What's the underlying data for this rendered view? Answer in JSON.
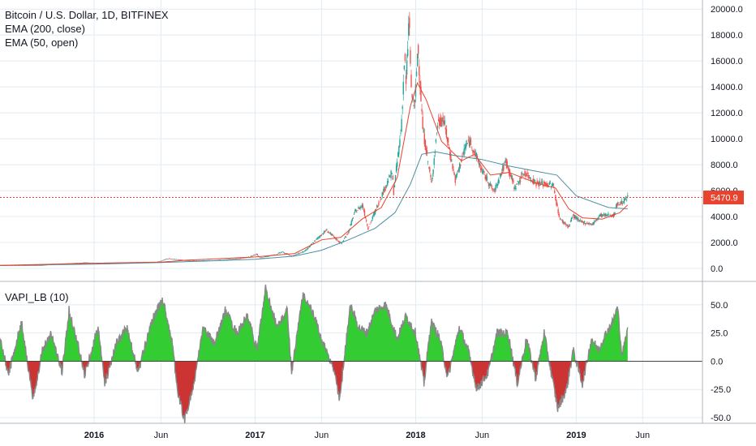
{
  "legend": {
    "symbol_line": "Bitcoin / U.S. Dollar, 1D, BITFINEX",
    "ema_long": "EMA (200, close)",
    "ema_short": "EMA (50, open)",
    "indicator": "VAPI_LB (10)"
  },
  "price_tag": "5470.9",
  "colors": {
    "up": "#26a69a",
    "down": "#ef5350",
    "ema200": "#4a8fa0",
    "ema50": "#e8432e",
    "osc_pos": "#33cc33",
    "osc_neg": "#cc3333",
    "osc_line": "#888888",
    "price_line": "#e8432e",
    "grid": "#e1ecf2"
  },
  "chart_data": [
    {
      "type": "candlestick",
      "title": "Bitcoin / U.S. Dollar, 1D, BITFINEX",
      "x_range": [
        "2015-06-01",
        "2019-10-15"
      ],
      "y_range": [
        -1000,
        20700
      ],
      "y_ticks": [
        "0.0",
        "2000.0",
        "4000.0",
        "6000.0",
        "8000.0",
        "10000.0",
        "12000.0",
        "14000.0",
        "16000.0",
        "18000.0",
        "20000.0"
      ],
      "x_ticks": [
        {
          "date": "2016-01-01",
          "label": "2016"
        },
        {
          "date": "2016-06-01",
          "label": "Jun"
        },
        {
          "date": "2017-01-01",
          "label": "2017"
        },
        {
          "date": "2017-06-01",
          "label": "Jun"
        },
        {
          "date": "2018-01-01",
          "label": "2018"
        },
        {
          "date": "2018-06-01",
          "label": "Jun"
        },
        {
          "date": "2019-01-01",
          "label": "2019"
        },
        {
          "date": "2019-06-01",
          "label": "Jun"
        }
      ],
      "last_price": 5470.9,
      "price_series": [
        [
          "2015-06-01",
          230
        ],
        [
          "2015-09-01",
          240
        ],
        [
          "2015-11-05",
          390
        ],
        [
          "2015-12-15",
          450
        ],
        [
          "2016-01-15",
          380
        ],
        [
          "2016-03-01",
          420
        ],
        [
          "2016-05-20",
          460
        ],
        [
          "2016-06-17",
          760
        ],
        [
          "2016-07-15",
          660
        ],
        [
          "2016-08-05",
          580
        ],
        [
          "2016-10-01",
          615
        ],
        [
          "2016-11-15",
          720
        ],
        [
          "2016-12-20",
          880
        ],
        [
          "2017-01-04",
          1120
        ],
        [
          "2017-01-12",
          800
        ],
        [
          "2017-02-20",
          1100
        ],
        [
          "2017-03-03",
          1280
        ],
        [
          "2017-03-25",
          950
        ],
        [
          "2017-04-25",
          1350
        ],
        [
          "2017-05-25",
          2400
        ],
        [
          "2017-06-12",
          2950
        ],
        [
          "2017-07-16",
          1900
        ],
        [
          "2017-08-01",
          2800
        ],
        [
          "2017-08-15",
          4300
        ],
        [
          "2017-09-02",
          4900
        ],
        [
          "2017-09-15",
          3100
        ],
        [
          "2017-10-01",
          4400
        ],
        [
          "2017-10-20",
          6000
        ],
        [
          "2017-11-08",
          7400
        ],
        [
          "2017-11-12",
          5900
        ],
        [
          "2017-11-29",
          10800
        ],
        [
          "2017-12-07",
          16500
        ],
        [
          "2017-12-10",
          14000
        ],
        [
          "2017-12-17",
          19500
        ],
        [
          "2017-12-22",
          13500
        ],
        [
          "2017-12-30",
          12500
        ],
        [
          "2018-01-06",
          17200
        ],
        [
          "2018-01-17",
          10800
        ],
        [
          "2018-02-06",
          6500
        ],
        [
          "2018-02-20",
          11200
        ],
        [
          "2018-03-05",
          11500
        ],
        [
          "2018-04-01",
          6800
        ],
        [
          "2018-04-25",
          9500
        ],
        [
          "2018-05-05",
          9800
        ],
        [
          "2018-06-01",
          7500
        ],
        [
          "2018-06-28",
          5900
        ],
        [
          "2018-07-25",
          8300
        ],
        [
          "2018-08-14",
          6200
        ],
        [
          "2018-09-05",
          7400
        ],
        [
          "2018-10-01",
          6600
        ],
        [
          "2018-11-10",
          6400
        ],
        [
          "2018-11-20",
          4500
        ],
        [
          "2018-11-25",
          3800
        ],
        [
          "2018-12-15",
          3200
        ],
        [
          "2018-12-24",
          4100
        ],
        [
          "2019-01-10",
          3600
        ],
        [
          "2019-02-07",
          3400
        ],
        [
          "2019-02-24",
          4100
        ],
        [
          "2019-03-30",
          4100
        ],
        [
          "2019-04-02",
          4900
        ],
        [
          "2019-04-15",
          5100
        ],
        [
          "2019-04-28",
          5470.9
        ]
      ],
      "ema200_series": [
        [
          "2015-06-01",
          230
        ],
        [
          "2016-01-01",
          330
        ],
        [
          "2016-06-01",
          450
        ],
        [
          "2017-01-01",
          700
        ],
        [
          "2017-04-01",
          950
        ],
        [
          "2017-06-01",
          1400
        ],
        [
          "2017-08-01",
          2200
        ],
        [
          "2017-10-01",
          3100
        ],
        [
          "2017-11-15",
          4300
        ],
        [
          "2017-12-20",
          6500
        ],
        [
          "2018-01-15",
          8800
        ],
        [
          "2018-02-15",
          9000
        ],
        [
          "2018-04-01",
          8700
        ],
        [
          "2018-06-01",
          8400
        ],
        [
          "2018-08-01",
          7900
        ],
        [
          "2018-10-01",
          7500
        ],
        [
          "2018-11-18",
          7200
        ],
        [
          "2019-01-01",
          5600
        ],
        [
          "2019-03-15",
          4700
        ],
        [
          "2019-04-28",
          4600
        ]
      ],
      "ema50_series": [
        [
          "2015-06-01",
          230
        ],
        [
          "2016-01-01",
          400
        ],
        [
          "2016-06-01",
          480
        ],
        [
          "2016-08-01",
          640
        ],
        [
          "2017-01-01",
          880
        ],
        [
          "2017-04-01",
          1150
        ],
        [
          "2017-06-01",
          2200
        ],
        [
          "2017-07-15",
          2400
        ],
        [
          "2017-09-01",
          3800
        ],
        [
          "2017-10-15",
          4700
        ],
        [
          "2017-11-20",
          7000
        ],
        [
          "2017-12-20",
          12500
        ],
        [
          "2018-01-05",
          14300
        ],
        [
          "2018-01-25",
          13000
        ],
        [
          "2018-03-01",
          9800
        ],
        [
          "2018-04-15",
          8300
        ],
        [
          "2018-05-15",
          8800
        ],
        [
          "2018-06-20",
          7200
        ],
        [
          "2018-08-01",
          7400
        ],
        [
          "2018-10-01",
          6600
        ],
        [
          "2018-11-15",
          6200
        ],
        [
          "2018-12-15",
          4600
        ],
        [
          "2019-01-15",
          3900
        ],
        [
          "2019-03-01",
          3800
        ],
        [
          "2019-04-10",
          4300
        ],
        [
          "2019-04-28",
          4900
        ]
      ]
    },
    {
      "type": "area",
      "title": "VAPI_LB (10)",
      "y_range": [
        -55,
        70
      ],
      "y_ticks": [
        "-50.0",
        "-25.0",
        "0.0",
        "25.0",
        "50.0"
      ],
      "series": [
        [
          "2015-06-01",
          20
        ],
        [
          "2015-06-20",
          -12
        ],
        [
          "2015-07-20",
          35
        ],
        [
          "2015-08-15",
          -35
        ],
        [
          "2015-09-05",
          10
        ],
        [
          "2015-09-25",
          25
        ],
        [
          "2015-10-20",
          -10
        ],
        [
          "2015-11-05",
          45
        ],
        [
          "2015-11-25",
          15
        ],
        [
          "2015-12-10",
          -12
        ],
        [
          "2016-01-10",
          30
        ],
        [
          "2016-01-25",
          -20
        ],
        [
          "2016-02-20",
          15
        ],
        [
          "2016-03-15",
          30
        ],
        [
          "2016-04-10",
          -10
        ],
        [
          "2016-05-10",
          35
        ],
        [
          "2016-06-05",
          55
        ],
        [
          "2016-06-25",
          20
        ],
        [
          "2016-07-10",
          -30
        ],
        [
          "2016-07-25",
          -52
        ],
        [
          "2016-08-15",
          -20
        ],
        [
          "2016-09-05",
          30
        ],
        [
          "2016-10-01",
          15
        ],
        [
          "2016-10-25",
          45
        ],
        [
          "2016-11-20",
          25
        ],
        [
          "2016-12-15",
          40
        ],
        [
          "2017-01-05",
          10
        ],
        [
          "2017-01-25",
          65
        ],
        [
          "2017-02-20",
          30
        ],
        [
          "2017-03-15",
          45
        ],
        [
          "2017-03-25",
          -10
        ],
        [
          "2017-04-20",
          60
        ],
        [
          "2017-05-15",
          40
        ],
        [
          "2017-06-05",
          15
        ],
        [
          "2017-07-01",
          -10
        ],
        [
          "2017-07-12",
          -35
        ],
        [
          "2017-08-05",
          50
        ],
        [
          "2017-08-25",
          30
        ],
        [
          "2017-09-12",
          25
        ],
        [
          "2017-10-01",
          45
        ],
        [
          "2017-10-25",
          50
        ],
        [
          "2017-11-20",
          20
        ],
        [
          "2017-12-10",
          40
        ],
        [
          "2018-01-01",
          25
        ],
        [
          "2018-01-20",
          -20
        ],
        [
          "2018-02-05",
          35
        ],
        [
          "2018-02-25",
          20
        ],
        [
          "2018-03-15",
          -15
        ],
        [
          "2018-04-10",
          30
        ],
        [
          "2018-04-30",
          10
        ],
        [
          "2018-05-20",
          -25
        ],
        [
          "2018-06-15",
          -10
        ],
        [
          "2018-07-05",
          25
        ],
        [
          "2018-07-30",
          25
        ],
        [
          "2018-08-20",
          -20
        ],
        [
          "2018-09-10",
          20
        ],
        [
          "2018-10-01",
          -15
        ],
        [
          "2018-10-20",
          25
        ],
        [
          "2018-11-05",
          -10
        ],
        [
          "2018-11-20",
          -42
        ],
        [
          "2018-12-10",
          -25
        ],
        [
          "2018-12-25",
          10
        ],
        [
          "2019-01-15",
          -20
        ],
        [
          "2019-02-05",
          20
        ],
        [
          "2019-02-20",
          10
        ],
        [
          "2019-03-10",
          25
        ],
        [
          "2019-03-25",
          35
        ],
        [
          "2019-04-05",
          48
        ],
        [
          "2019-04-15",
          5
        ],
        [
          "2019-04-28",
          28
        ]
      ]
    }
  ]
}
